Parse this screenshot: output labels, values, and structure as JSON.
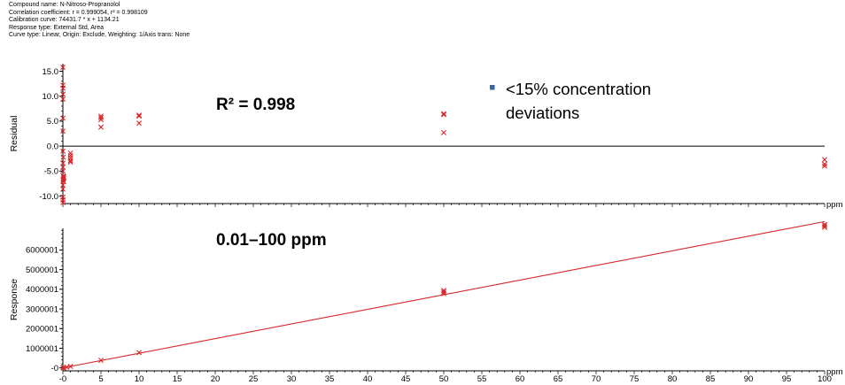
{
  "info_lines": [
    "Compound name: N-Nitroso-Propranolol",
    "Correlation coefficient: r = 0.999054, r² = 0.998109",
    "Calibration curve: 74431.7 * x + 1134.21",
    "Response type: External Std, Area",
    "Curve type: Linear, Origin: Exclude, Weighting: 1/Axis trans: None"
  ],
  "colors": {
    "marker": "#d9262b",
    "fit_line": "#d9262b",
    "legend_bullet": "#3a63a8",
    "axis": "#000000"
  },
  "chart_data": [
    {
      "type": "scatter",
      "title": "",
      "annotation": "R² = 0.998",
      "legend": {
        "entries": [
          "<15%  concentration",
          "deviations"
        ],
        "placement": "top-right"
      },
      "xlabel": "ppm",
      "ylabel": "Residual",
      "xlim": [
        0,
        100
      ],
      "ylim": [
        -11.5,
        16.5
      ],
      "x_ticks": [],
      "y_ticks": [
        {
          "value": 15,
          "label": "15.0"
        },
        {
          "value": 10,
          "label": "10.0"
        },
        {
          "value": 5,
          "label": "5.0"
        },
        {
          "value": 0,
          "label": "0.0"
        },
        {
          "value": -5,
          "label": "-5.0"
        },
        {
          "value": -10,
          "label": "-10.0"
        }
      ],
      "baseline": 0,
      "points": [
        [
          0.01,
          15.8
        ],
        [
          0.01,
          12.2
        ],
        [
          0.01,
          11.6
        ],
        [
          0.01,
          10.4
        ],
        [
          0.01,
          9.4
        ],
        [
          0.01,
          5.6
        ],
        [
          0.01,
          3.0
        ],
        [
          0.01,
          -1.0
        ],
        [
          0.01,
          -3.4
        ],
        [
          0.01,
          -4.2
        ],
        [
          0.01,
          -5.0
        ],
        [
          0.01,
          -7.8
        ],
        [
          0.01,
          -8.6
        ],
        [
          0.01,
          -10.2
        ],
        [
          0.01,
          -10.8
        ],
        [
          0.01,
          -11.3
        ],
        [
          0.05,
          -2.2
        ],
        [
          0.05,
          -6.0
        ],
        [
          0.05,
          -6.6
        ],
        [
          0.05,
          -6.9
        ],
        [
          0.1,
          -6.1
        ],
        [
          0.1,
          -6.4
        ],
        [
          0.1,
          -7.1
        ],
        [
          1,
          -1.4
        ],
        [
          1,
          -1.9
        ],
        [
          1,
          -2.4
        ],
        [
          1,
          -2.9
        ],
        [
          1,
          -3.2
        ],
        [
          5,
          6.0
        ],
        [
          5,
          5.7
        ],
        [
          5,
          5.3
        ],
        [
          5,
          3.8
        ],
        [
          10,
          6.2
        ],
        [
          10,
          6.0
        ],
        [
          10,
          4.6
        ],
        [
          50,
          6.5
        ],
        [
          50,
          6.3
        ],
        [
          50,
          2.7
        ],
        [
          100,
          -2.7
        ],
        [
          100,
          -3.6
        ],
        [
          100,
          -4.0
        ]
      ]
    },
    {
      "type": "scatter",
      "title": "",
      "annotation": "0.01–100 ppm",
      "xlabel": "ppm",
      "ylabel": "Response",
      "xlim": [
        0,
        100
      ],
      "ylim": [
        -150000,
        7100000
      ],
      "x_ticks": [
        "-0",
        "5",
        "10",
        "15",
        "20",
        "25",
        "30",
        "35",
        "40",
        "45",
        "50",
        "55",
        "60",
        "65",
        "70",
        "75",
        "80",
        "85",
        "90",
        "95",
        "100"
      ],
      "y_ticks": [
        {
          "value": 6000001,
          "label": "6000001"
        },
        {
          "value": 5000001,
          "label": "5000001"
        },
        {
          "value": 4000001,
          "label": "4000001"
        },
        {
          "value": 3000001,
          "label": "3000001"
        },
        {
          "value": 2000001,
          "label": "2000001"
        },
        {
          "value": 1000001,
          "label": "1000001"
        },
        {
          "value": 1,
          "label": "-0"
        }
      ],
      "fit": {
        "slope": 74431.7,
        "intercept": 1134.21,
        "x_range": [
          0,
          100
        ]
      },
      "points": [
        [
          0.01,
          1500
        ],
        [
          0.05,
          4200
        ],
        [
          0.1,
          8000
        ],
        [
          0.5,
          38000
        ],
        [
          1,
          75000
        ],
        [
          5,
          385000
        ],
        [
          10,
          780000
        ],
        [
          50,
          3780000
        ],
        [
          50,
          3860000
        ],
        [
          50,
          3940000
        ],
        [
          100,
          7150000
        ],
        [
          100,
          7230000
        ],
        [
          100,
          7300000
        ]
      ]
    }
  ]
}
